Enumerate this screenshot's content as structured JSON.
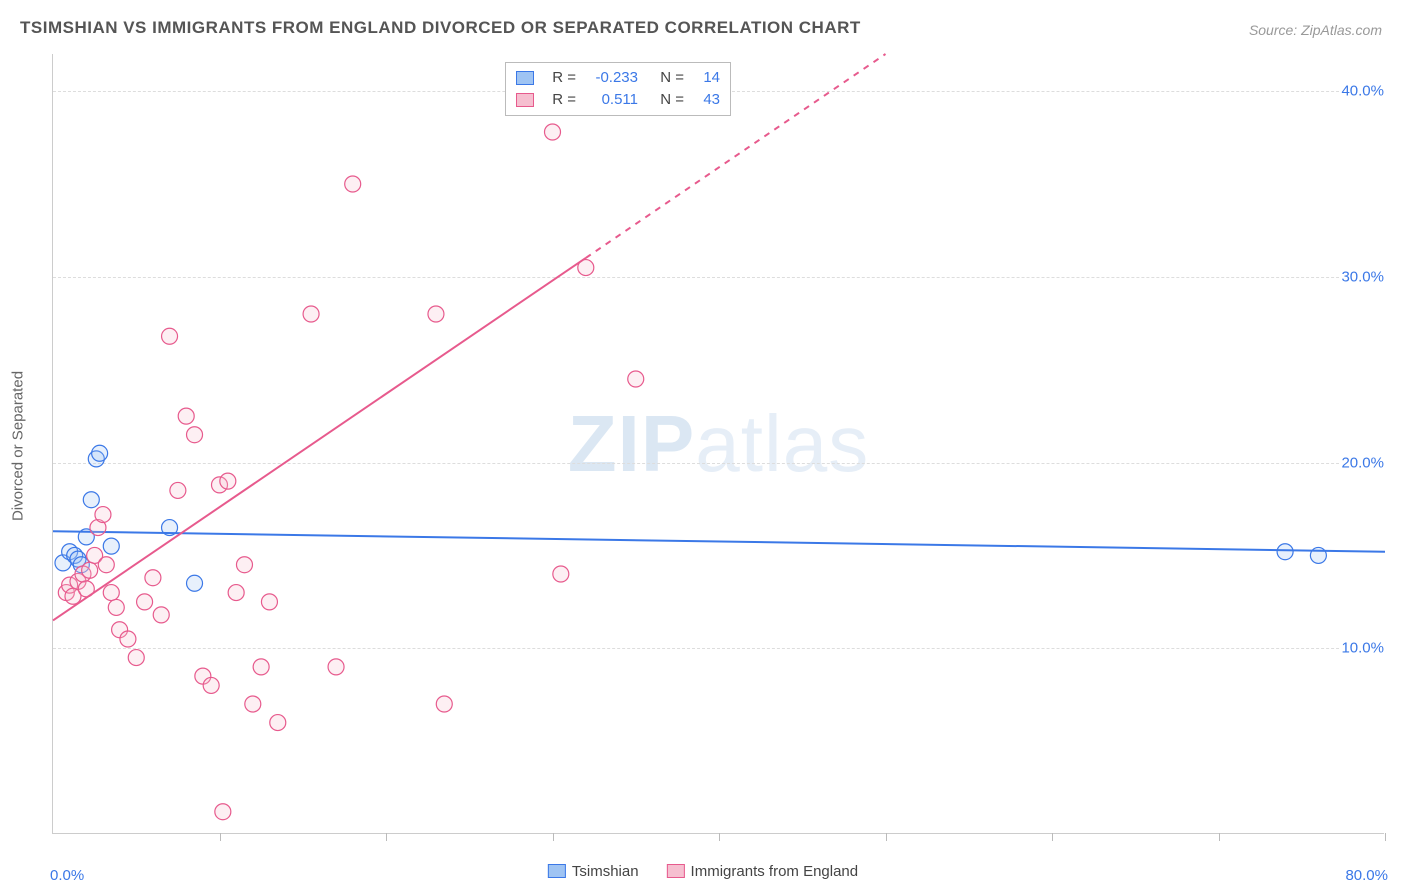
{
  "title": "TSIMSHIAN VS IMMIGRANTS FROM ENGLAND DIVORCED OR SEPARATED CORRELATION CHART",
  "source": "Source: ZipAtlas.com",
  "ylabel": "Divorced or Separated",
  "watermark_bold": "ZIP",
  "watermark_light": "atlas",
  "chart": {
    "type": "scatter",
    "xlim": [
      0,
      80
    ],
    "ylim": [
      0,
      42
    ],
    "yticks": [
      10,
      20,
      30,
      40
    ],
    "ytick_labels": [
      "10.0%",
      "20.0%",
      "30.0%",
      "40.0%"
    ],
    "xticks": [
      10,
      20,
      30,
      40,
      50,
      60,
      70,
      80
    ],
    "origin_label": "0.0%",
    "xmax_label": "80.0%",
    "background_color": "#ffffff",
    "grid_color": "#dddddd",
    "grid_dash": true,
    "axis_color": "#cccccc",
    "marker_radius": 8,
    "marker_stroke_width": 1.2,
    "marker_fill_opacity": 0.25,
    "line_width": 2,
    "series": [
      {
        "name": "Tsimshian",
        "color_fill": "#9fc4f3",
        "color_stroke": "#3b78e7",
        "r_label": "R =",
        "r_value": "-0.233",
        "n_label": "N =",
        "n_value": "14",
        "trend": {
          "x1": 0,
          "y1": 16.3,
          "x2": 80,
          "y2": 15.2,
          "dash_after_x": null
        },
        "points": [
          [
            0.6,
            14.6
          ],
          [
            1.0,
            15.2
          ],
          [
            1.3,
            15.0
          ],
          [
            1.5,
            14.8
          ],
          [
            1.7,
            14.5
          ],
          [
            2.0,
            16.0
          ],
          [
            2.3,
            18.0
          ],
          [
            2.6,
            20.2
          ],
          [
            2.8,
            20.5
          ],
          [
            3.5,
            15.5
          ],
          [
            7.0,
            16.5
          ],
          [
            8.5,
            13.5
          ],
          [
            74.0,
            15.2
          ],
          [
            76.0,
            15.0
          ]
        ]
      },
      {
        "name": "Immigrants from England",
        "color_fill": "#f6bfd0",
        "color_stroke": "#e75a8d",
        "r_label": "R =",
        "r_value": "0.511",
        "n_label": "N =",
        "n_value": "43",
        "trend": {
          "x1": 0,
          "y1": 11.5,
          "x2": 50,
          "y2": 42.0,
          "dash_after_x": 32
        },
        "points": [
          [
            0.8,
            13.0
          ],
          [
            1.0,
            13.4
          ],
          [
            1.2,
            12.8
          ],
          [
            1.5,
            13.6
          ],
          [
            1.8,
            14.0
          ],
          [
            2.0,
            13.2
          ],
          [
            2.2,
            14.2
          ],
          [
            2.5,
            15.0
          ],
          [
            2.7,
            16.5
          ],
          [
            3.0,
            17.2
          ],
          [
            3.2,
            14.5
          ],
          [
            3.5,
            13.0
          ],
          [
            3.8,
            12.2
          ],
          [
            4.0,
            11.0
          ],
          [
            4.5,
            10.5
          ],
          [
            5.0,
            9.5
          ],
          [
            5.5,
            12.5
          ],
          [
            6.0,
            13.8
          ],
          [
            6.5,
            11.8
          ],
          [
            7.0,
            26.8
          ],
          [
            7.5,
            18.5
          ],
          [
            8.0,
            22.5
          ],
          [
            8.5,
            21.5
          ],
          [
            9.0,
            8.5
          ],
          [
            9.5,
            8.0
          ],
          [
            10.0,
            18.8
          ],
          [
            10.5,
            19.0
          ],
          [
            11.0,
            13.0
          ],
          [
            11.5,
            14.5
          ],
          [
            12.0,
            7.0
          ],
          [
            12.5,
            9.0
          ],
          [
            13.0,
            12.5
          ],
          [
            13.5,
            6.0
          ],
          [
            10.2,
            1.2
          ],
          [
            15.5,
            28.0
          ],
          [
            17.0,
            9.0
          ],
          [
            18.0,
            35.0
          ],
          [
            23.0,
            28.0
          ],
          [
            23.5,
            7.0
          ],
          [
            30.0,
            37.8
          ],
          [
            32.0,
            30.5
          ],
          [
            35.0,
            24.5
          ],
          [
            30.5,
            14.0
          ]
        ]
      }
    ]
  },
  "legend_bottom": [
    {
      "label": "Tsimshian",
      "fill": "#9fc4f3",
      "stroke": "#3b78e7"
    },
    {
      "label": "Immigrants from England",
      "fill": "#f6bfd0",
      "stroke": "#e75a8d"
    }
  ]
}
